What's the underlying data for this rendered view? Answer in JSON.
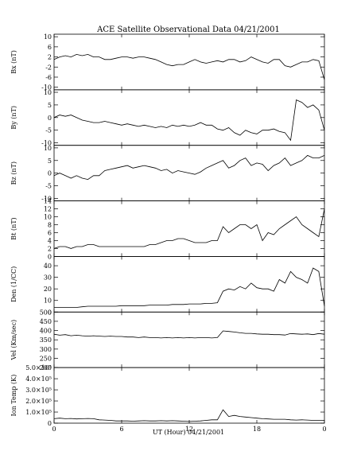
{
  "chart_data": {
    "type": "line",
    "title": "ACE Satellite Observational Data   04/21/2001",
    "xlabel": "UT (Hour)  04/21/2001",
    "x_range": [
      0,
      24
    ],
    "x_ticks": [
      "0",
      "6",
      "12",
      "18",
      "0"
    ],
    "x_tick_values": [
      0,
      6,
      12,
      18,
      24
    ],
    "line_color": "#000000",
    "panels": [
      {
        "id": "bx",
        "ylabel": "Bx (nT)",
        "ylim": [
          -11,
          11
        ],
        "yticks": [
          -10,
          -6,
          -2,
          2,
          6,
          10
        ],
        "ytick_labels": [
          "-10",
          "-6",
          "-2",
          "2",
          "6",
          "10"
        ],
        "x": [
          0,
          0.5,
          1,
          1.5,
          2,
          2.5,
          3,
          3.5,
          4,
          4.5,
          5,
          5.5,
          6,
          6.5,
          7,
          7.5,
          8,
          8.5,
          9,
          9.5,
          10,
          10.5,
          11,
          11.5,
          12,
          12.5,
          13,
          13.5,
          14,
          14.5,
          15,
          15.5,
          16,
          16.5,
          17,
          17.5,
          18,
          18.5,
          19,
          19.5,
          20,
          20.5,
          21,
          21.5,
          22,
          22.5,
          23,
          23.5,
          24
        ],
        "y": [
          1,
          2,
          2.5,
          2,
          3,
          2.5,
          3,
          2,
          2,
          1,
          1,
          1.5,
          2,
          2,
          1.5,
          2,
          2,
          1.5,
          1,
          0,
          -1,
          -1.5,
          -1,
          -1,
          0,
          1,
          0,
          -0.5,
          0,
          0.5,
          0,
          1,
          1,
          0,
          0.5,
          2,
          1,
          0,
          -0.5,
          1,
          1,
          -1.5,
          -2,
          -1,
          0,
          0,
          1,
          0.5,
          -7
        ]
      },
      {
        "id": "by",
        "ylabel": "By (nT)",
        "ylim": [
          -11,
          11
        ],
        "yticks": [
          -10,
          -5,
          0,
          5,
          10
        ],
        "ytick_labels": [
          "-10",
          "-5",
          "0",
          "5",
          "10"
        ],
        "x": [
          0,
          0.5,
          1,
          1.5,
          2,
          2.5,
          3,
          3.5,
          4,
          4.5,
          5,
          5.5,
          6,
          6.5,
          7,
          7.5,
          8,
          8.5,
          9,
          9.5,
          10,
          10.5,
          11,
          11.5,
          12,
          12.5,
          13,
          13.5,
          14,
          14.5,
          15,
          15.5,
          16,
          16.5,
          17,
          17.5,
          18,
          18.5,
          19,
          19.5,
          20,
          20.5,
          21,
          21.5,
          22,
          22.5,
          23,
          23.5,
          24
        ],
        "y": [
          0,
          1,
          0.5,
          1,
          0,
          -1,
          -1.5,
          -2,
          -2,
          -1.5,
          -2,
          -2.5,
          -3,
          -2.5,
          -3,
          -3.5,
          -3,
          -3.5,
          -4,
          -3.5,
          -4,
          -3,
          -3.5,
          -3,
          -3.5,
          -3,
          -2,
          -3,
          -3,
          -4.5,
          -5,
          -4,
          -6,
          -7,
          -5,
          -6,
          -6.5,
          -5,
          -5,
          -4.5,
          -5.5,
          -6,
          -9,
          7,
          6,
          4,
          5,
          3,
          -5
        ]
      },
      {
        "id": "bz",
        "ylabel": "Bz (nT)",
        "ylim": [
          -11,
          11
        ],
        "yticks": [
          -10,
          -5,
          0,
          5,
          10
        ],
        "ytick_labels": [
          "-10",
          "-5",
          "0",
          "5",
          "10"
        ],
        "x": [
          0,
          0.5,
          1,
          1.5,
          2,
          2.5,
          3,
          3.5,
          4,
          4.5,
          5,
          5.5,
          6,
          6.5,
          7,
          7.5,
          8,
          8.5,
          9,
          9.5,
          10,
          10.5,
          11,
          11.5,
          12,
          12.5,
          13,
          13.5,
          14,
          14.5,
          15,
          15.5,
          16,
          16.5,
          17,
          17.5,
          18,
          18.5,
          19,
          19.5,
          20,
          20.5,
          21,
          21.5,
          22,
          22.5,
          23,
          23.5,
          24
        ],
        "y": [
          -1,
          0,
          -1,
          -2,
          -1,
          -2,
          -2.5,
          -1,
          -1,
          1,
          1.5,
          2,
          2.5,
          3,
          2,
          2.5,
          3,
          2.5,
          2,
          1,
          1.5,
          0,
          1,
          0.5,
          0,
          -0.5,
          0.5,
          2,
          3,
          4,
          5,
          2,
          3,
          5,
          6,
          3,
          4,
          3.5,
          1,
          3,
          4,
          6,
          3,
          4,
          5,
          7,
          6,
          6,
          7
        ]
      },
      {
        "id": "bt",
        "ylabel": "Bt (nT)",
        "ylim": [
          0,
          14
        ],
        "yticks": [
          0,
          2,
          4,
          6,
          8,
          10,
          12,
          14
        ],
        "ytick_labels": [
          "0",
          "2",
          "4",
          "6",
          "8",
          "10",
          "12",
          "14"
        ],
        "x": [
          0,
          0.5,
          1,
          1.5,
          2,
          2.5,
          3,
          3.5,
          4,
          4.5,
          5,
          5.5,
          6,
          6.5,
          7,
          7.5,
          8,
          8.5,
          9,
          9.5,
          10,
          10.5,
          11,
          11.5,
          12,
          12.5,
          13,
          13.5,
          14,
          14.5,
          15,
          15.5,
          16,
          16.5,
          17,
          17.5,
          18,
          18.5,
          19,
          19.5,
          20,
          20.5,
          21,
          21.5,
          22,
          22.5,
          23,
          23.5,
          24
        ],
        "y": [
          2,
          2.5,
          2.5,
          2,
          2.5,
          2.5,
          3,
          3,
          2.5,
          2.5,
          2.5,
          2.5,
          2.5,
          2.5,
          2.5,
          2.5,
          2.5,
          3,
          3,
          3.5,
          4,
          4,
          4.5,
          4.5,
          4,
          3.5,
          3.5,
          3.5,
          4,
          4,
          7.5,
          6,
          7,
          8,
          8,
          7,
          8,
          4,
          6,
          5.5,
          7,
          8,
          9,
          10,
          8,
          7,
          6,
          5,
          12
        ]
      },
      {
        "id": "den",
        "ylabel": "Den (1/CC)",
        "ylim": [
          0,
          48
        ],
        "yticks": [
          0,
          10,
          20,
          30,
          40
        ],
        "ytick_labels": [
          "0",
          "10",
          "20",
          "30",
          "40"
        ],
        "x": [
          0,
          0.5,
          1,
          1.5,
          2,
          2.5,
          3,
          3.5,
          4,
          4.5,
          5,
          5.5,
          6,
          6.5,
          7,
          7.5,
          8,
          8.5,
          9,
          9.5,
          10,
          10.5,
          11,
          11.5,
          12,
          12.5,
          13,
          13.5,
          14,
          14.5,
          15,
          15.5,
          16,
          16.5,
          17,
          17.5,
          18,
          18.5,
          19,
          19.5,
          20,
          20.5,
          21,
          21.5,
          22,
          22.5,
          23,
          23.5,
          24
        ],
        "y": [
          4,
          4,
          4,
          4,
          4,
          4.5,
          5,
          5,
          5,
          5,
          5,
          5,
          5.5,
          5.5,
          5.5,
          5.5,
          5.5,
          6,
          6,
          6,
          6,
          6.5,
          6.5,
          6.5,
          7,
          7,
          7,
          7.5,
          7.5,
          8,
          18,
          20,
          19,
          22,
          20,
          25,
          21,
          20,
          20,
          18,
          28,
          25,
          35,
          30,
          28,
          25,
          38,
          35,
          5
        ]
      },
      {
        "id": "vel",
        "ylabel": "Vel (Km/sec)",
        "ylim": [
          200,
          500
        ],
        "yticks": [
          200,
          250,
          300,
          350,
          400,
          450,
          500
        ],
        "ytick_labels": [
          "200",
          "250",
          "300",
          "350",
          "400",
          "450",
          "500"
        ],
        "x": [
          0,
          0.5,
          1,
          1.5,
          2,
          2.5,
          3,
          3.5,
          4,
          4.5,
          5,
          5.5,
          6,
          6.5,
          7,
          7.5,
          8,
          8.5,
          9,
          9.5,
          10,
          10.5,
          11,
          11.5,
          12,
          12.5,
          13,
          13.5,
          14,
          14.5,
          15,
          15.5,
          16,
          16.5,
          17,
          17.5,
          18,
          18.5,
          19,
          19.5,
          20,
          20.5,
          21,
          21.5,
          22,
          22.5,
          23,
          23.5,
          24
        ],
        "y": [
          380,
          375,
          378,
          372,
          375,
          372,
          370,
          372,
          370,
          368,
          370,
          368,
          368,
          365,
          365,
          362,
          365,
          362,
          362,
          360,
          362,
          360,
          362,
          360,
          362,
          360,
          362,
          362,
          360,
          362,
          398,
          395,
          392,
          388,
          385,
          385,
          382,
          380,
          380,
          378,
          378,
          376,
          384,
          382,
          380,
          382,
          378,
          384,
          380
        ]
      },
      {
        "id": "temp",
        "ylabel": "Ion Temp (K)",
        "ylim": [
          0,
          500000
        ],
        "yticks": [
          0,
          100000,
          200000,
          300000,
          400000,
          500000
        ],
        "ytick_labels": [
          "0",
          "1.0×10⁵",
          "2.0×10⁵",
          "3.0×10⁵",
          "4.0×10⁵",
          "5.0×10⁵"
        ],
        "x": [
          0,
          0.5,
          1,
          1.5,
          2,
          2.5,
          3,
          3.5,
          4,
          4.5,
          5,
          5.5,
          6,
          6.5,
          7,
          7.5,
          8,
          8.5,
          9,
          9.5,
          10,
          10.5,
          11,
          11.5,
          12,
          12.5,
          13,
          13.5,
          14,
          14.5,
          15,
          15.5,
          16,
          16.5,
          17,
          17.5,
          18,
          18.5,
          19,
          19.5,
          20,
          20.5,
          21,
          21.5,
          22,
          22.5,
          23,
          23.5,
          24
        ],
        "y": [
          40000,
          45000,
          40000,
          42000,
          38000,
          40000,
          42000,
          40000,
          30000,
          28000,
          25000,
          20000,
          20000,
          20000,
          18000,
          20000,
          22000,
          20000,
          20000,
          22000,
          20000,
          22000,
          20000,
          18000,
          15000,
          18000,
          20000,
          25000,
          30000,
          30000,
          120000,
          60000,
          70000,
          60000,
          55000,
          50000,
          45000,
          40000,
          38000,
          35000,
          35000,
          35000,
          30000,
          28000,
          30000,
          28000,
          25000,
          25000,
          25000
        ]
      }
    ]
  }
}
